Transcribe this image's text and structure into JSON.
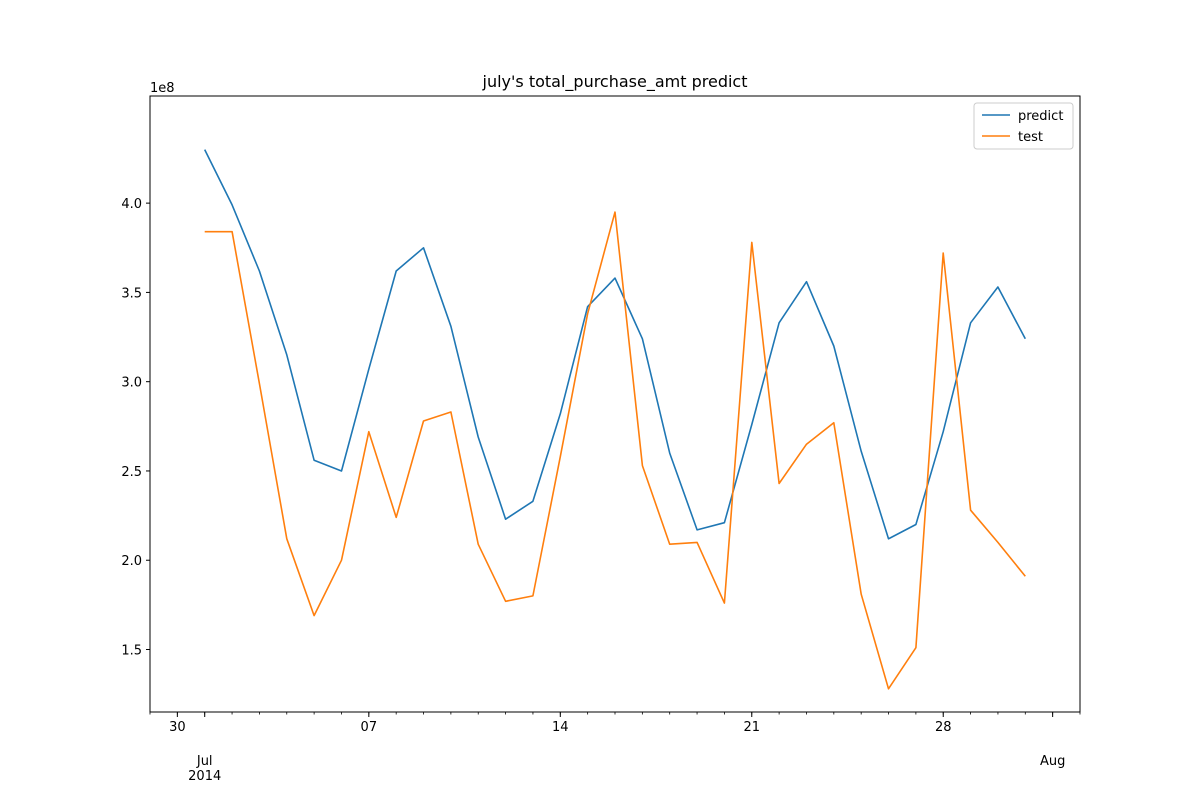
{
  "chart_data": {
    "type": "line",
    "title": "july's total_purchase_amt predict",
    "xlabel": "",
    "ylabel": "",
    "y_offset_label": "1e8",
    "xlim": [
      "2014-06-29",
      "2014-08-02"
    ],
    "ylim": [
      1.15,
      4.6
    ],
    "x": [
      "2014-07-01",
      "2014-07-02",
      "2014-07-03",
      "2014-07-04",
      "2014-07-05",
      "2014-07-06",
      "2014-07-07",
      "2014-07-08",
      "2014-07-09",
      "2014-07-10",
      "2014-07-11",
      "2014-07-12",
      "2014-07-13",
      "2014-07-14",
      "2014-07-15",
      "2014-07-16",
      "2014-07-17",
      "2014-07-18",
      "2014-07-19",
      "2014-07-20",
      "2014-07-21",
      "2014-07-22",
      "2014-07-23",
      "2014-07-24",
      "2014-07-25",
      "2014-07-26",
      "2014-07-27",
      "2014-07-28",
      "2014-07-29",
      "2014-07-30",
      "2014-07-31"
    ],
    "x_major_ticks": [
      {
        "date": "2014-06-30",
        "label": "30"
      },
      {
        "date": "2014-07-07",
        "label": "07"
      },
      {
        "date": "2014-07-14",
        "label": "14"
      },
      {
        "date": "2014-07-21",
        "label": "21"
      },
      {
        "date": "2014-07-28",
        "label": "28"
      }
    ],
    "x_month_ticks": [
      {
        "date": "2014-07-01",
        "label": "Jul",
        "sublabel": "2014"
      },
      {
        "date": "2014-08-01",
        "label": "Aug",
        "sublabel": ""
      }
    ],
    "y_ticks": [
      1.5,
      2.0,
      2.5,
      3.0,
      3.5,
      4.0
    ],
    "y_tick_labels": [
      "1.5",
      "2.0",
      "2.5",
      "3.0",
      "3.5",
      "4.0"
    ],
    "grid": false,
    "legend_position": "top-right",
    "series": [
      {
        "name": "predict",
        "color": "#1f77b4",
        "values": [
          4.3,
          3.99,
          3.62,
          3.15,
          2.56,
          2.5,
          3.07,
          3.62,
          3.75,
          3.31,
          2.69,
          2.23,
          2.33,
          2.82,
          3.42,
          3.58,
          3.24,
          2.6,
          2.17,
          2.21,
          2.76,
          3.33,
          3.56,
          3.2,
          2.61,
          2.12,
          2.2,
          2.72,
          3.33,
          3.53,
          3.24
        ]
      },
      {
        "name": "test",
        "color": "#ff7f0e",
        "values": [
          3.84,
          3.84,
          2.99,
          2.12,
          1.69,
          2.0,
          2.72,
          2.24,
          2.78,
          2.83,
          2.09,
          1.77,
          1.8,
          2.58,
          3.38,
          3.95,
          2.53,
          2.09,
          2.1,
          1.76,
          3.78,
          2.43,
          2.65,
          2.77,
          1.81,
          1.28,
          1.51,
          3.72,
          2.28,
          2.1,
          1.91
        ]
      }
    ]
  }
}
